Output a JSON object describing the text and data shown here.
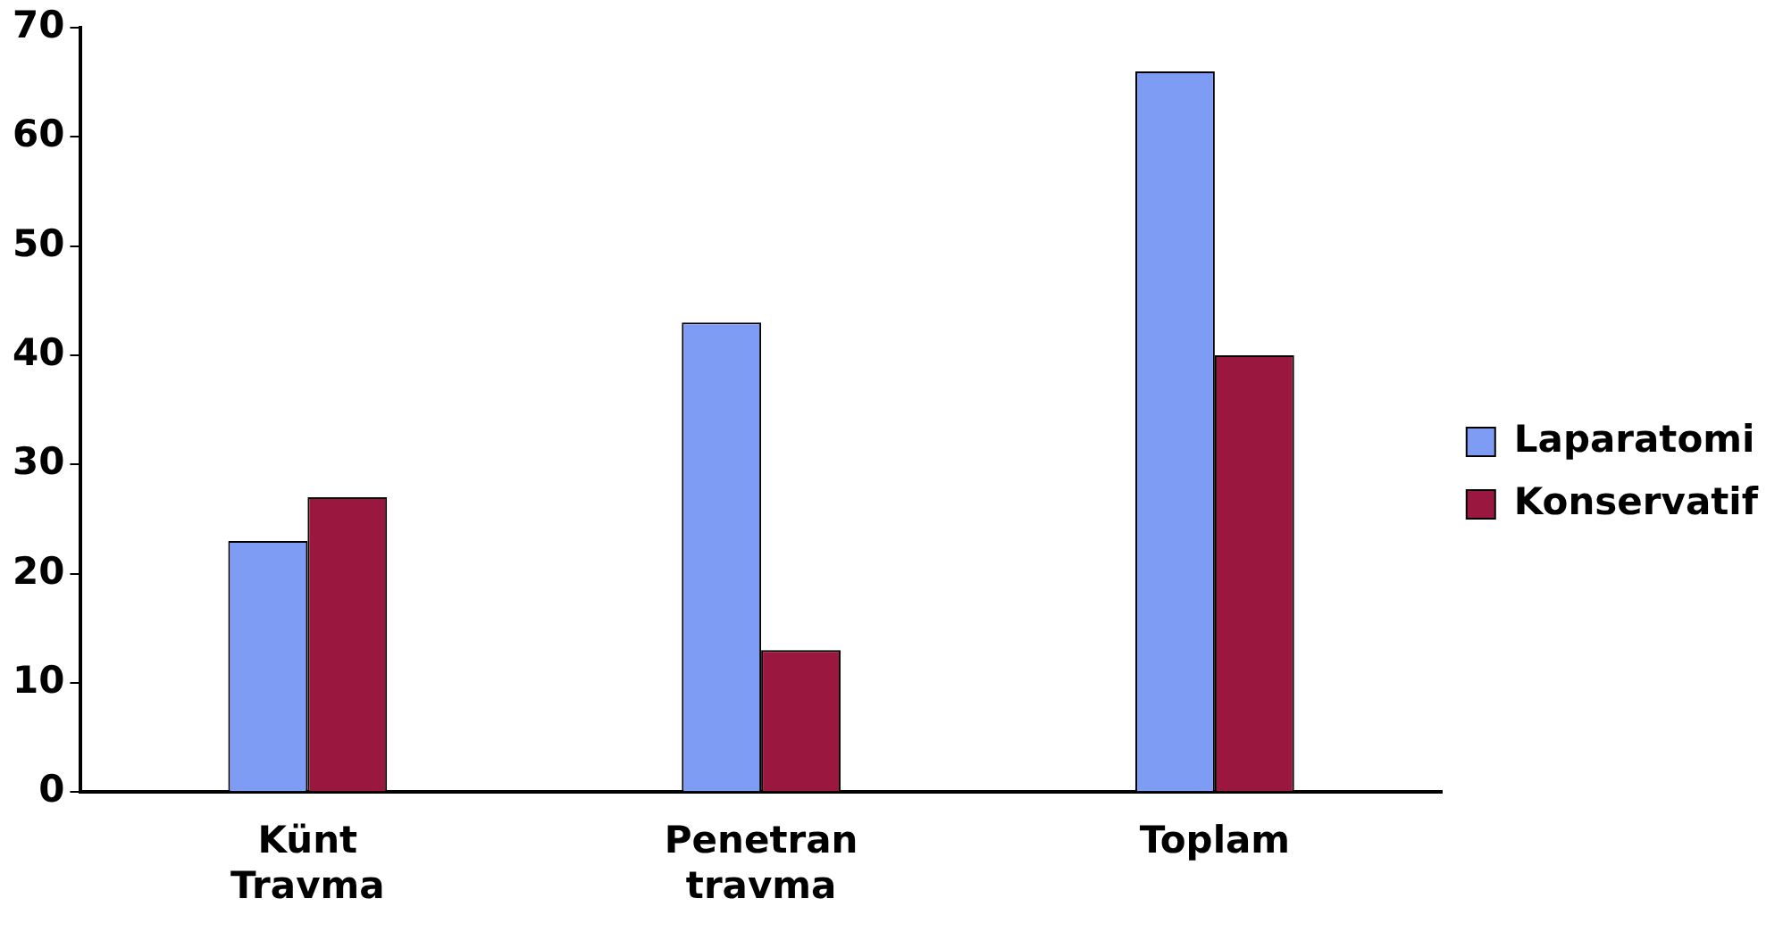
{
  "chart_data": {
    "type": "bar",
    "categories": [
      "Künt Travma",
      "Penetran travma",
      "Toplam"
    ],
    "series": [
      {
        "name": "Laparatomi",
        "color": "#7f9cf5",
        "values": [
          23,
          43,
          66
        ]
      },
      {
        "name": "Konservatif",
        "color": "#9a1840",
        "values": [
          27,
          13,
          40
        ]
      }
    ],
    "ylim": [
      0,
      70
    ],
    "yticks": [
      0,
      10,
      20,
      30,
      40,
      50,
      60,
      70
    ],
    "grid": false,
    "legend": "right"
  }
}
